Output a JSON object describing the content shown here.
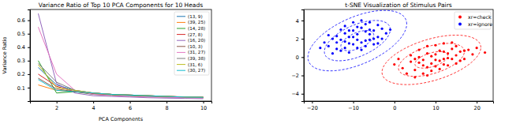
{
  "chart_data": [
    {
      "type": "line",
      "title": "Variance Ratio of Top 10 PCA Components for 10 Heads",
      "x_label": "PCA Components",
      "y_label": "Variance Ratio",
      "x": [
        1,
        2,
        3,
        4,
        5,
        6,
        7,
        8,
        9,
        10
      ],
      "xlim": [
        0.55,
        10.45
      ],
      "xticks": [
        2,
        4,
        6,
        8,
        10
      ],
      "ylim": [
        0,
        0.68
      ],
      "yticks": [
        0.1,
        0.2,
        0.3,
        0.4,
        0.5,
        0.6
      ],
      "grid": false,
      "legend": "upper-right",
      "series": [
        {
          "name": "(13, 9)",
          "color": "#1f77b4",
          "line_style": "solid",
          "values": [
            0.25,
            0.12,
            0.08,
            0.06,
            0.05,
            0.04,
            0.035,
            0.03,
            0.028,
            0.025
          ]
        },
        {
          "name": "(39, 25)",
          "color": "#ff7f0e",
          "line_style": "solid",
          "values": [
            0.12,
            0.08,
            0.07,
            0.06,
            0.05,
            0.045,
            0.04,
            0.035,
            0.03,
            0.028
          ]
        },
        {
          "name": "(14, 28)",
          "color": "#2ca02c",
          "line_style": "solid",
          "values": [
            0.3,
            0.06,
            0.07,
            0.05,
            0.045,
            0.04,
            0.035,
            0.03,
            0.028,
            0.025
          ]
        },
        {
          "name": "(27, 8)",
          "color": "#d62728",
          "line_style": "solid",
          "values": [
            0.2,
            0.11,
            0.07,
            0.055,
            0.05,
            0.045,
            0.04,
            0.035,
            0.03,
            0.028
          ]
        },
        {
          "name": "(16, 20)",
          "color": "#9467bd",
          "line_style": "solid",
          "values": [
            0.65,
            0.13,
            0.06,
            0.04,
            0.035,
            0.03,
            0.025,
            0.022,
            0.02,
            0.018
          ]
        },
        {
          "name": "(10, 3)",
          "color": "#8c564b",
          "line_style": "solid",
          "values": [
            0.17,
            0.09,
            0.07,
            0.06,
            0.05,
            0.045,
            0.04,
            0.035,
            0.03,
            0.028
          ]
        },
        {
          "name": "(31, 27)",
          "color": "#e377c2",
          "line_style": "solid",
          "values": [
            0.55,
            0.2,
            0.08,
            0.05,
            0.04,
            0.035,
            0.03,
            0.028,
            0.025,
            0.022
          ]
        },
        {
          "name": "(39, 38)",
          "color": "#7f7f7f",
          "line_style": "solid",
          "values": [
            0.28,
            0.14,
            0.08,
            0.06,
            0.05,
            0.045,
            0.04,
            0.035,
            0.032,
            0.03
          ]
        },
        {
          "name": "(31, 6)",
          "color": "#bcbd22",
          "line_style": "solid",
          "values": [
            0.27,
            0.1,
            0.08,
            0.06,
            0.05,
            0.045,
            0.04,
            0.035,
            0.03,
            0.028
          ]
        },
        {
          "name": "(30, 27)",
          "color": "#17becf",
          "line_style": "solid",
          "values": [
            0.16,
            0.08,
            0.07,
            0.06,
            0.05,
            0.045,
            0.04,
            0.035,
            0.03,
            0.028
          ]
        }
      ]
    },
    {
      "type": "scatter",
      "title": "t-SNE Visualization of Stimulus Pairs",
      "xlim": [
        -22,
        24
      ],
      "xticks": [
        {
          "value": -20,
          "label": "−20"
        },
        {
          "value": -10,
          "label": "−10"
        },
        0,
        10,
        20
      ],
      "ylim": [
        -4.8,
        5.2
      ],
      "yticks": [
        {
          "value": -4,
          "label": "−4"
        },
        {
          "value": -2,
          "label": "−2"
        },
        0,
        2,
        4
      ],
      "grid": false,
      "legend": "upper-right",
      "series": [
        {
          "name": "xr=check",
          "color": "#ff0000",
          "marker": "o",
          "x": [
            2,
            4,
            5,
            6,
            7,
            8,
            9,
            10,
            11,
            12,
            13,
            14,
            15,
            16,
            18,
            20,
            3,
            5,
            7,
            9,
            11,
            13,
            15,
            17,
            19,
            6,
            8,
            10,
            12,
            14,
            4,
            6,
            8,
            10,
            12,
            14,
            16,
            0,
            1,
            22,
            9,
            11,
            7,
            13,
            15,
            5,
            17,
            10,
            8,
            12
          ],
          "y": [
            -1.2,
            -0.5,
            -1.4,
            0.0,
            -0.9,
            0.4,
            -0.7,
            0.3,
            -0.4,
            0.6,
            -0.1,
            0.9,
            0.2,
            0.6,
            0.8,
            1.0,
            -1.8,
            -2.2,
            -1.8,
            -1.5,
            -1.3,
            -0.9,
            -0.7,
            -0.2,
            0.3,
            0.8,
            1.2,
            1.3,
            1.5,
            1.6,
            0.2,
            -0.6,
            -1.1,
            -0.3,
            -0.8,
            -0.2,
            -0.4,
            -0.8,
            -0.2,
            0.5,
            0.1,
            0.7,
            -0.3,
            0.4,
            1.2,
            -0.2,
            0.7,
            -1.0,
            -2.0,
            -0.2
          ],
          "ellipse": {
            "center": [
              9,
              -0.3
            ],
            "std": [
              4,
              0.9
            ],
            "corr": 0.5,
            "n_std": [
              1,
              2,
              3
            ]
          }
        },
        {
          "name": "xr=ignore",
          "color": "#0000ff",
          "marker": "o",
          "x": [
            -16,
            -14,
            -13,
            -12,
            -11,
            -10,
            -9,
            -8,
            -7,
            -6,
            -5,
            -4,
            -3,
            -15,
            -13,
            -11,
            -9,
            -7,
            -5,
            -12,
            -10,
            -8,
            -6,
            -4,
            -2,
            -17,
            -14,
            -12,
            -10,
            -8,
            -6,
            -11,
            -9,
            -7,
            -13,
            -15,
            -5,
            -3,
            -8,
            -10,
            -12,
            -6,
            -9,
            -11,
            -7,
            -4,
            -14,
            -16,
            -1,
            -18
          ],
          "y": [
            1.2,
            0.9,
            1.9,
            1.0,
            2.2,
            1.4,
            2.5,
            1.6,
            2.8,
            1.9,
            2.9,
            2.2,
            3.1,
            0.4,
            0.7,
            1.5,
            1.0,
            1.8,
            2.0,
            2.6,
            2.9,
            3.2,
            3.0,
            3.5,
            2.6,
            1.6,
            2.3,
            3.4,
            3.8,
            4.0,
            3.8,
            0.5,
            1.9,
            1.2,
            3.0,
            2.0,
            1.4,
            2.0,
            0.8,
            2.2,
            1.7,
            2.5,
            3.3,
            2.9,
            3.6,
            1.5,
            1.6,
            2.4,
            3.0,
            1.0
          ],
          "ellipse": {
            "center": [
              -9,
              1.8
            ],
            "std": [
              4,
              1.1
            ],
            "corr": 0.55,
            "n_std": [
              1,
              2,
              3
            ]
          }
        }
      ]
    }
  ]
}
